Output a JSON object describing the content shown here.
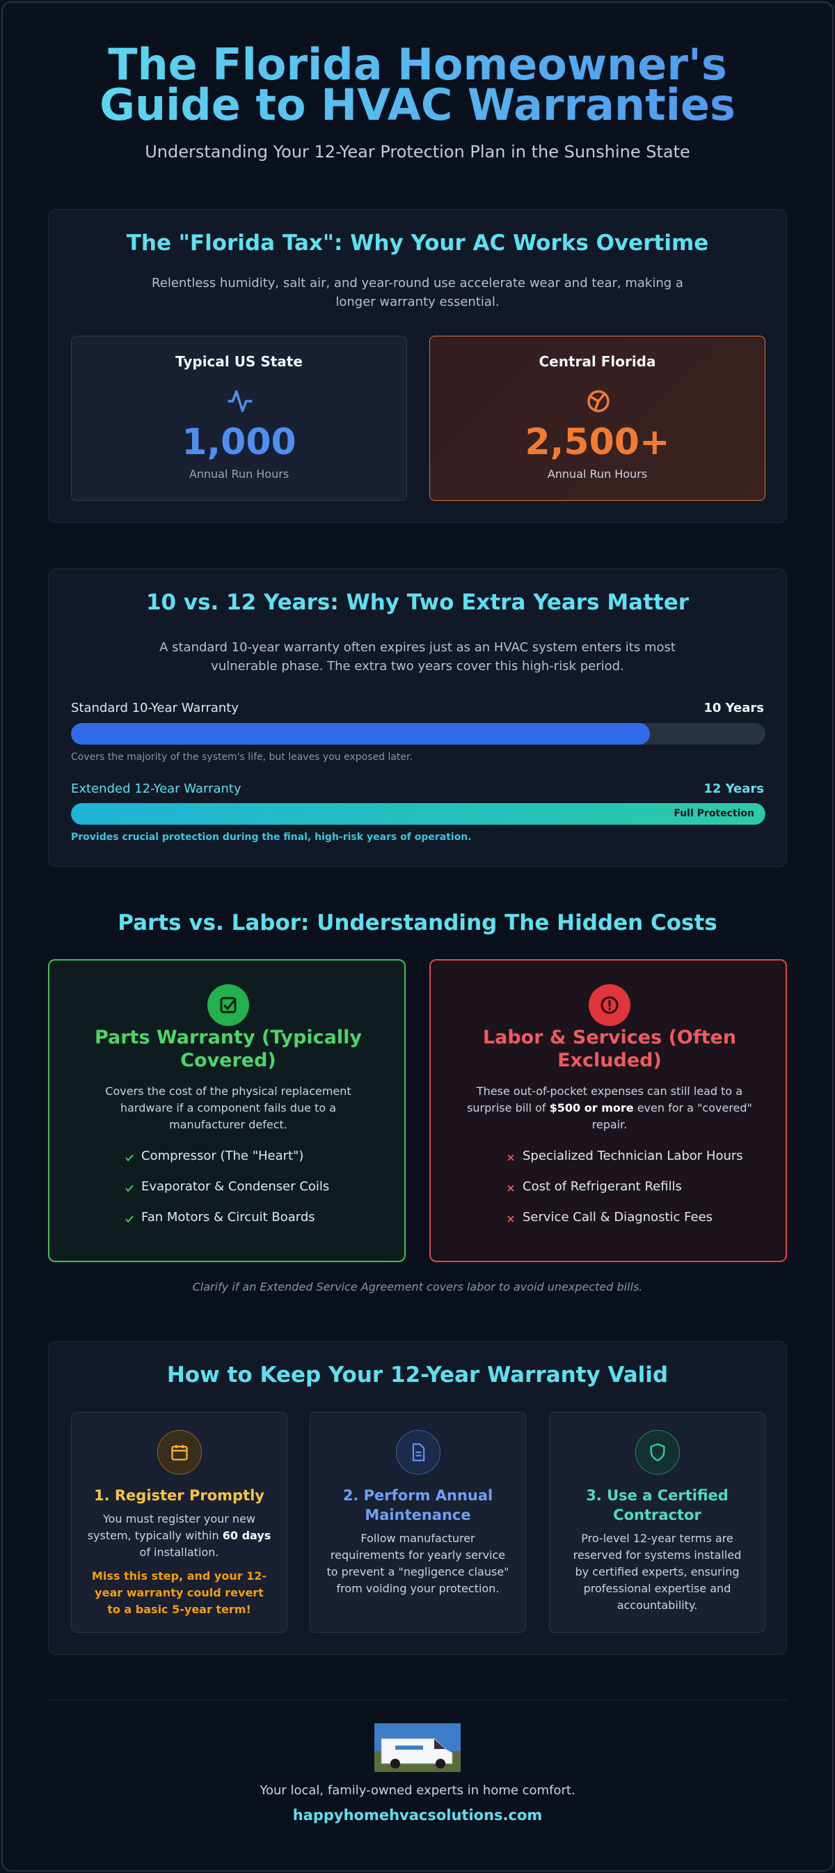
{
  "header": {
    "title_lines": [
      "The Florida Homeowner's",
      "Guide to HVAC Warranties"
    ],
    "subtitle": "Understanding Your 12-Year Protection Plan in the Sunshine State"
  },
  "florida_tax": {
    "title": "The \"Florida Tax\": Why Your AC Works Overtime",
    "description": "Relentless humidity, salt air, and year-round use accelerate wear and tear, making a longer warranty essential.",
    "cards": [
      {
        "label": "Typical US State",
        "value": "1,000",
        "caption": "Annual Run Hours"
      },
      {
        "label": "Central Florida",
        "value": "2,500+",
        "caption": "Annual Run Hours"
      }
    ]
  },
  "years": {
    "title": "10 vs. 12 Years: Why Two Extra Years Matter",
    "description": "A standard 10-year warranty often expires just as an HVAC system enters its most vulnerable phase. The extra two years cover this high-risk period.",
    "bars": [
      {
        "name": "Standard 10-Year Warranty",
        "years": 10,
        "years_label": "10 Years",
        "note": "Covers the majority of the system's life, but leaves you exposed later."
      },
      {
        "name": "Extended 12-Year Warranty",
        "years": 12,
        "years_label": "12 Years",
        "badge": "Full Protection",
        "note": "Provides crucial protection during the final, high-risk years of operation."
      }
    ]
  },
  "costs": {
    "title": "Parts vs. Labor: Understanding The Hidden Costs",
    "parts": {
      "title": "Parts Warranty (Typically Covered)",
      "description": "Covers the cost of the physical replacement hardware if a component fails due to a manufacturer defect.",
      "items": [
        "Compressor (The \"Heart\")",
        "Evaporator & Condenser Coils",
        "Fan Motors & Circuit Boards"
      ]
    },
    "labor": {
      "title": "Labor & Services (Often Excluded)",
      "description_parts": [
        "These out-of-pocket expenses can still lead to a surprise bill of ",
        "$500 or more",
        " even for a \"covered\" repair."
      ],
      "items": [
        "Specialized Technician Labor Hours",
        "Cost of Refrigerant Refills",
        "Service Call & Diagnostic Fees"
      ]
    },
    "note": "Clarify if an Extended Service Agreement covers labor to avoid unexpected bills."
  },
  "steps": {
    "title": "How to Keep Your 12-Year Warranty Valid",
    "items": [
      {
        "title": "1. Register Promptly",
        "text_parts": [
          "You must register your new system, typically within ",
          "60 days",
          " of installation."
        ],
        "warning": "Miss this step, and your 12-year warranty could revert to a basic 5-year term!"
      },
      {
        "title": "2. Perform Annual Maintenance",
        "text": "Follow manufacturer requirements for yearly service to prevent a \"negligence clause\" from voiding your protection."
      },
      {
        "title": "3. Use a Certified Contractor",
        "text": "Pro-level 12-year terms are reserved for systems installed by certified experts, ensuring professional expertise and accountability."
      }
    ]
  },
  "footer": {
    "tagline": "Your local, family-owned experts in home comfort.",
    "url": "happyhomehvacsolutions.com"
  }
}
